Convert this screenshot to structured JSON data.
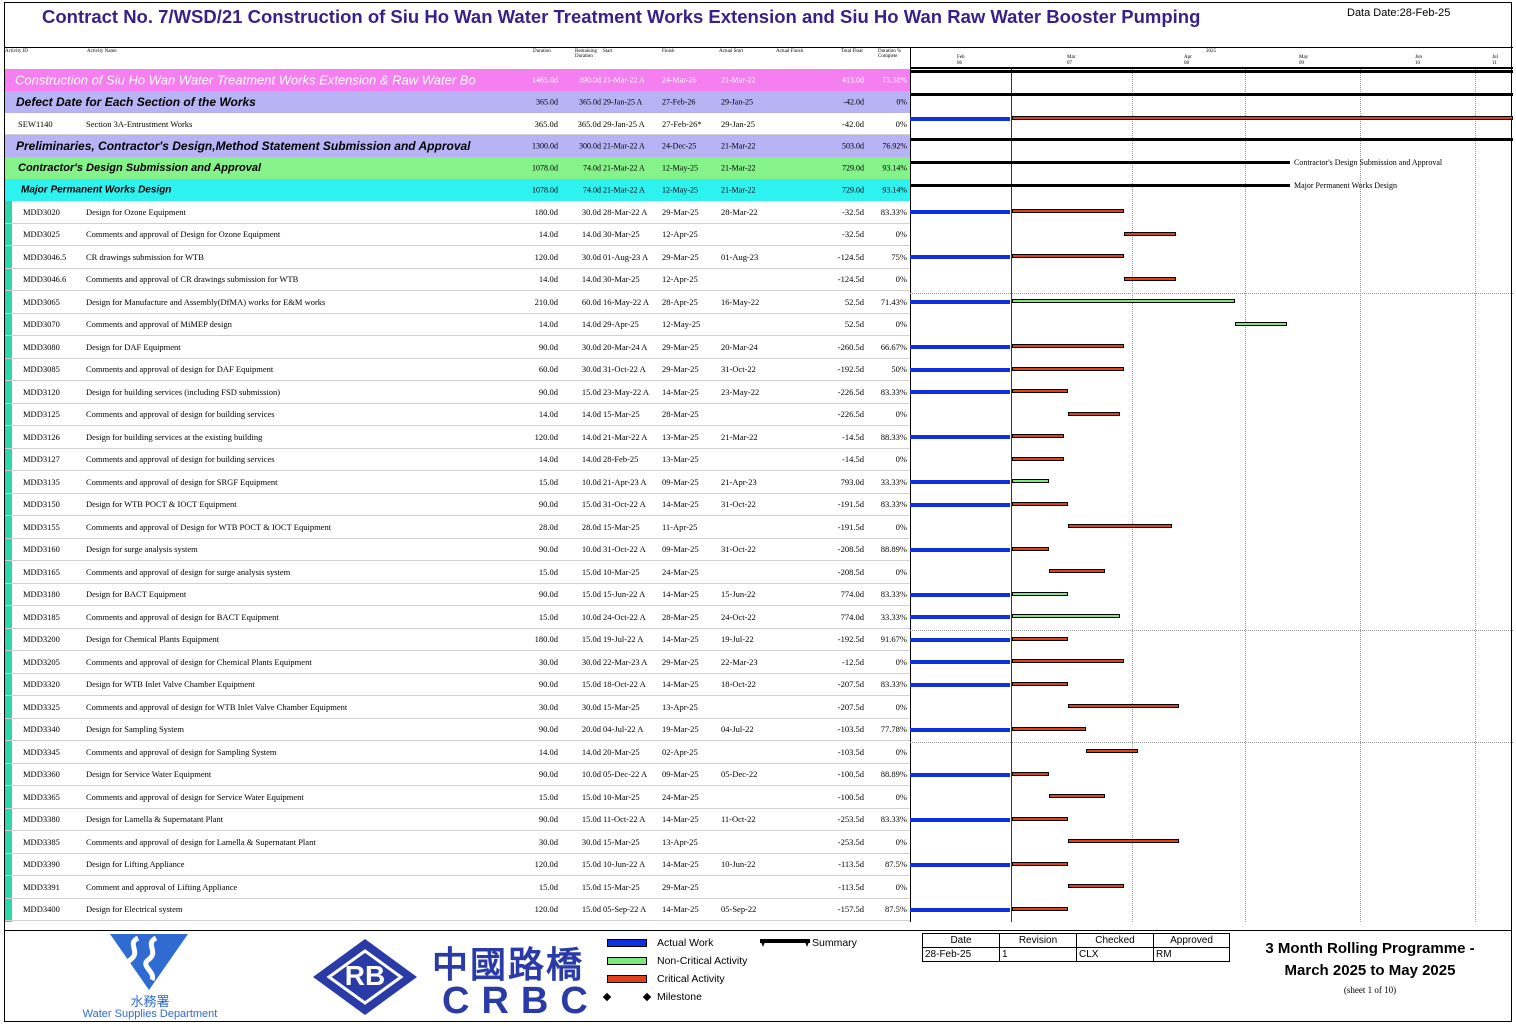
{
  "header": {
    "title": "Contract No. 7/WSD/21 Construction of Siu Ho Wan Water Treatment Works Extension and Siu Ho Wan Raw Water Booster Pumping",
    "data_date": "Data Date:28-Feb-25"
  },
  "columns": {
    "id": "Activity ID",
    "name": "Activity Name",
    "duration": "Duration",
    "remaining": "Remaining Duration",
    "start": "Start",
    "finish": "Finish",
    "actual_start": "Actual Start",
    "actual_finish": "Actual Finish",
    "total_float": "Total Float",
    "pct": "Duration % Complete"
  },
  "timescale": {
    "year": "2025",
    "months": [
      "Feb",
      "Mar",
      "Apr",
      "May",
      "Jun",
      "Jul"
    ],
    "weeks": [
      "06",
      "07",
      "08",
      "09",
      "10",
      "11"
    ]
  },
  "wbs": [
    {
      "name": "Construction of Siu Ho Wan Water Treatment Works Extension & Raw Water Bo",
      "dur": "1465.0d",
      "rem": "390.0d",
      "start": "21-Mar-22 A",
      "finish": "24-Mar-26",
      "astart": "21-Mar-22",
      "float": "413.0d",
      "pct": "73.38%",
      "color": "#f57ff0"
    },
    {
      "name": "Defect Date for Each Section of the Works",
      "dur": "365.0d",
      "rem": "365.0d",
      "start": "29-Jan-25 A",
      "finish": "27-Feb-26",
      "astart": "29-Jan-25",
      "float": "-42.0d",
      "pct": "0%",
      "color": "#b8b3f5"
    },
    {
      "name": "Preliminaries, Contractor's Design,Method Statement Submission and Approval",
      "dur": "1300.0d",
      "rem": "300.0d",
      "start": "21-Mar-22 A",
      "finish": "24-Dec-25",
      "astart": "21-Mar-22",
      "float": "503.0d",
      "pct": "76.92%",
      "color": "#b8b3f5"
    },
    {
      "name": "Contractor's Design Submission and Approval",
      "dur": "1078.0d",
      "rem": "74.0d",
      "start": "21-Mar-22 A",
      "finish": "12-May-25",
      "astart": "21-Mar-22",
      "float": "729.0d",
      "pct": "93.14%",
      "color": "#86f28a"
    },
    {
      "name": "Major Permanent Works Design",
      "dur": "1078.0d",
      "rem": "74.0d",
      "start": "21-Mar-22 A",
      "finish": "12-May-25",
      "astart": "21-Mar-22",
      "float": "729.0d",
      "pct": "93.14%",
      "color": "#2ef2f0"
    }
  ],
  "sew": {
    "id": "SEW1140",
    "name": "Section 3A-Entrustment Works",
    "dur": "365.0d",
    "rem": "365.0d",
    "start": "29-Jan-25 A",
    "finish": "27-Feb-26*",
    "astart": "29-Jan-25",
    "float": "-42.0d",
    "pct": "0%"
  },
  "summary_labels": [
    "Contractor's Design Submission and Approval",
    "Major Permanent Works Design"
  ],
  "activities": [
    {
      "id": "MDD3020",
      "name": "Design for Ozone Equipment",
      "dur": "180.0d",
      "rem": "30.0d",
      "start": "28-Mar-22 A",
      "finish": "29-Mar-25",
      "astart": "28-Mar-22",
      "float": "-32.5d",
      "pct": "83.33%"
    },
    {
      "id": "MDD3025",
      "name": "Comments and approval of Design for Ozone Equipment",
      "dur": "14.0d",
      "rem": "14.0d",
      "start": "30-Mar-25",
      "finish": "12-Apr-25",
      "astart": "",
      "float": "-32.5d",
      "pct": "0%"
    },
    {
      "id": "MDD3046.5",
      "name": "CR drawings submission for WTB",
      "dur": "120.0d",
      "rem": "30.0d",
      "start": "01-Aug-23 A",
      "finish": "29-Mar-25",
      "astart": "01-Aug-23",
      "float": "-124.5d",
      "pct": "75%"
    },
    {
      "id": "MDD3046.6",
      "name": "Comments and approval of CR drawings submission for WTB",
      "dur": "14.0d",
      "rem": "14.0d",
      "start": "30-Mar-25",
      "finish": "12-Apr-25",
      "astart": "",
      "float": "-124.5d",
      "pct": "0%"
    },
    {
      "id": "MDD3065",
      "name": "Design for Manufacture and Assembly(DfMA) works for E&M works",
      "dur": "210.0d",
      "rem": "60.0d",
      "start": "16-May-22 A",
      "finish": "28-Apr-25",
      "astart": "16-May-22",
      "float": "52.5d",
      "pct": "71.43%"
    },
    {
      "id": "MDD3070",
      "name": "Comments and approval of MiMEP design",
      "dur": "14.0d",
      "rem": "14.0d",
      "start": "29-Apr-25",
      "finish": "12-May-25",
      "astart": "",
      "float": "52.5d",
      "pct": "0%"
    },
    {
      "id": "MDD3080",
      "name": "Design for DAF Equipment",
      "dur": "90.0d",
      "rem": "30.0d",
      "start": "20-Mar-24 A",
      "finish": "29-Mar-25",
      "astart": "20-Mar-24",
      "float": "-260.5d",
      "pct": "66.67%"
    },
    {
      "id": "MDD3085",
      "name": "Comments and approval of design for DAF Equipment",
      "dur": "60.0d",
      "rem": "30.0d",
      "start": "31-Oct-22 A",
      "finish": "29-Mar-25",
      "astart": "31-Oct-22",
      "float": "-192.5d",
      "pct": "50%"
    },
    {
      "id": "MDD3120",
      "name": "Design for building services (including FSD submission)",
      "dur": "90.0d",
      "rem": "15.0d",
      "start": "23-May-22 A",
      "finish": "14-Mar-25",
      "astart": "23-May-22",
      "float": "-226.5d",
      "pct": "83.33%"
    },
    {
      "id": "MDD3125",
      "name": "Comments and approval of design for building services",
      "dur": "14.0d",
      "rem": "14.0d",
      "start": "15-Mar-25",
      "finish": "28-Mar-25",
      "astart": "",
      "float": "-226.5d",
      "pct": "0%"
    },
    {
      "id": "MDD3126",
      "name": "Design for building services at the existing building",
      "dur": "120.0d",
      "rem": "14.0d",
      "start": "21-Mar-22 A",
      "finish": "13-Mar-25",
      "astart": "21-Mar-22",
      "float": "-14.5d",
      "pct": "88.33%"
    },
    {
      "id": "MDD3127",
      "name": "Comments and approval of design for building services",
      "dur": "14.0d",
      "rem": "14.0d",
      "start": "28-Feb-25",
      "finish": "13-Mar-25",
      "astart": "",
      "float": "-14.5d",
      "pct": "0%"
    },
    {
      "id": "MDD3135",
      "name": "Comments and approval of design for SRGF Equipment",
      "dur": "15.0d",
      "rem": "10.0d",
      "start": "21-Apr-23 A",
      "finish": "09-Mar-25",
      "astart": "21-Apr-23",
      "float": "793.0d",
      "pct": "33.33%"
    },
    {
      "id": "MDD3150",
      "name": "Design for WTB POCT & IOCT Equipment",
      "dur": "90.0d",
      "rem": "15.0d",
      "start": "31-Oct-22 A",
      "finish": "14-Mar-25",
      "astart": "31-Oct-22",
      "float": "-191.5d",
      "pct": "83.33%"
    },
    {
      "id": "MDD3155",
      "name": "Comments and approval of Design for WTB POCT & IOCT Equipment",
      "dur": "28.0d",
      "rem": "28.0d",
      "start": "15-Mar-25",
      "finish": "11-Apr-25",
      "astart": "",
      "float": "-191.5d",
      "pct": "0%"
    },
    {
      "id": "MDD3160",
      "name": "Design for surge analysis system",
      "dur": "90.0d",
      "rem": "10.0d",
      "start": "31-Oct-22 A",
      "finish": "09-Mar-25",
      "astart": "31-Oct-22",
      "float": "-208.5d",
      "pct": "88.89%"
    },
    {
      "id": "MDD3165",
      "name": "Comments and approval of design for surge analysis system",
      "dur": "15.0d",
      "rem": "15.0d",
      "start": "10-Mar-25",
      "finish": "24-Mar-25",
      "astart": "",
      "float": "-208.5d",
      "pct": "0%"
    },
    {
      "id": "MDD3180",
      "name": "Design for BACT Equipment",
      "dur": "90.0d",
      "rem": "15.0d",
      "start": "15-Jun-22 A",
      "finish": "14-Mar-25",
      "astart": "15-Jun-22",
      "float": "774.0d",
      "pct": "83.33%"
    },
    {
      "id": "MDD3185",
      "name": "Comments and approval of design for BACT Equipment",
      "dur": "15.0d",
      "rem": "10.0d",
      "start": "24-Oct-22 A",
      "finish": "28-Mar-25",
      "astart": "24-Oct-22",
      "float": "774.0d",
      "pct": "33.33%"
    },
    {
      "id": "MDD3200",
      "name": "Design for Chemical Plants Equipment",
      "dur": "180.0d",
      "rem": "15.0d",
      "start": "19-Jul-22 A",
      "finish": "14-Mar-25",
      "astart": "19-Jul-22",
      "float": "-192.5d",
      "pct": "91.67%"
    },
    {
      "id": "MDD3205",
      "name": "Comments and approval of design for Chemical Plants Equipment",
      "dur": "30.0d",
      "rem": "30.0d",
      "start": "22-Mar-23 A",
      "finish": "29-Mar-25",
      "astart": "22-Mar-23",
      "float": "-12.5d",
      "pct": "0%"
    },
    {
      "id": "MDD3320",
      "name": "Design for WTB Inlet Valve Chamber Equipment",
      "dur": "90.0d",
      "rem": "15.0d",
      "start": "18-Oct-22 A",
      "finish": "14-Mar-25",
      "astart": "18-Oct-22",
      "float": "-207.5d",
      "pct": "83.33%"
    },
    {
      "id": "MDD3325",
      "name": "Comments and approval of design for WTB Inlet Valve Chamber Equipment",
      "dur": "30.0d",
      "rem": "30.0d",
      "start": "15-Mar-25",
      "finish": "13-Apr-25",
      "astart": "",
      "float": "-207.5d",
      "pct": "0%"
    },
    {
      "id": "MDD3340",
      "name": "Design for Sampling System",
      "dur": "90.0d",
      "rem": "20.0d",
      "start": "04-Jul-22 A",
      "finish": "19-Mar-25",
      "astart": "04-Jul-22",
      "float": "-103.5d",
      "pct": "77.78%"
    },
    {
      "id": "MDD3345",
      "name": "Comments and approval of design for Sampling System",
      "dur": "14.0d",
      "rem": "14.0d",
      "start": "20-Mar-25",
      "finish": "02-Apr-25",
      "astart": "",
      "float": "-103.5d",
      "pct": "0%"
    },
    {
      "id": "MDD3360",
      "name": "Design for Service Water Equipment",
      "dur": "90.0d",
      "rem": "10.0d",
      "start": "05-Dec-22 A",
      "finish": "09-Mar-25",
      "astart": "05-Dec-22",
      "float": "-100.5d",
      "pct": "88.89%"
    },
    {
      "id": "MDD3365",
      "name": "Comments and approval of design for Service Water Equipment",
      "dur": "15.0d",
      "rem": "15.0d",
      "start": "10-Mar-25",
      "finish": "24-Mar-25",
      "astart": "",
      "float": "-100.5d",
      "pct": "0%"
    },
    {
      "id": "MDD3380",
      "name": "Design for Lamella & Supernatant Plant",
      "dur": "90.0d",
      "rem": "15.0d",
      "start": "11-Oct-22 A",
      "finish": "14-Mar-25",
      "astart": "11-Oct-22",
      "float": "-253.5d",
      "pct": "83.33%"
    },
    {
      "id": "MDD3385",
      "name": "Comments and approval of design for Lamella & Supernatant Plant",
      "dur": "30.0d",
      "rem": "30.0d",
      "start": "15-Mar-25",
      "finish": "13-Apr-25",
      "astart": "",
      "float": "-253.5d",
      "pct": "0%"
    },
    {
      "id": "MDD3390",
      "name": "Design for Lifting Appliance",
      "dur": "120.0d",
      "rem": "15.0d",
      "start": "10-Jun-22 A",
      "finish": "14-Mar-25",
      "astart": "10-Jun-22",
      "float": "-113.5d",
      "pct": "87.5%"
    },
    {
      "id": "MDD3391",
      "name": "Comment and approval of Lifting Appliance",
      "dur": "15.0d",
      "rem": "15.0d",
      "start": "15-Mar-25",
      "finish": "29-Mar-25",
      "astart": "",
      "float": "-113.5d",
      "pct": "0%"
    },
    {
      "id": "MDD3400",
      "name": "Design for Electrical system",
      "dur": "120.0d",
      "rem": "15.0d",
      "start": "05-Sep-22 A",
      "finish": "14-Mar-25",
      "astart": "05-Sep-22",
      "float": "-157.5d",
      "pct": "87.5%"
    }
  ],
  "gantt_colors": {
    "actual": "#1030e0",
    "critical": "#e0401a",
    "noncritical": "#7ee87e"
  },
  "footer": {
    "wsd_chinese": "水務署",
    "wsd_english": "Water Supplies Department",
    "crbc_logo_text": "RB",
    "crbc_chinese": "中國路橋",
    "crbc_english": "CRBC",
    "legend": {
      "actual": "Actual Work",
      "noncritical": "Non-Critical Activity",
      "critical": "Critical Activity",
      "milestone": "Milestone",
      "summary": "Summary"
    },
    "revision": {
      "headers": [
        "Date",
        "Revision",
        "Checked",
        "Approved"
      ],
      "values": [
        "28-Feb-25",
        "1",
        "CLX",
        "RM"
      ]
    },
    "sheet_title_1": "3 Month Rolling Programme -",
    "sheet_title_2": "March 2025 to May 2025",
    "sheet_no": "(sheet 1 of 10)"
  }
}
